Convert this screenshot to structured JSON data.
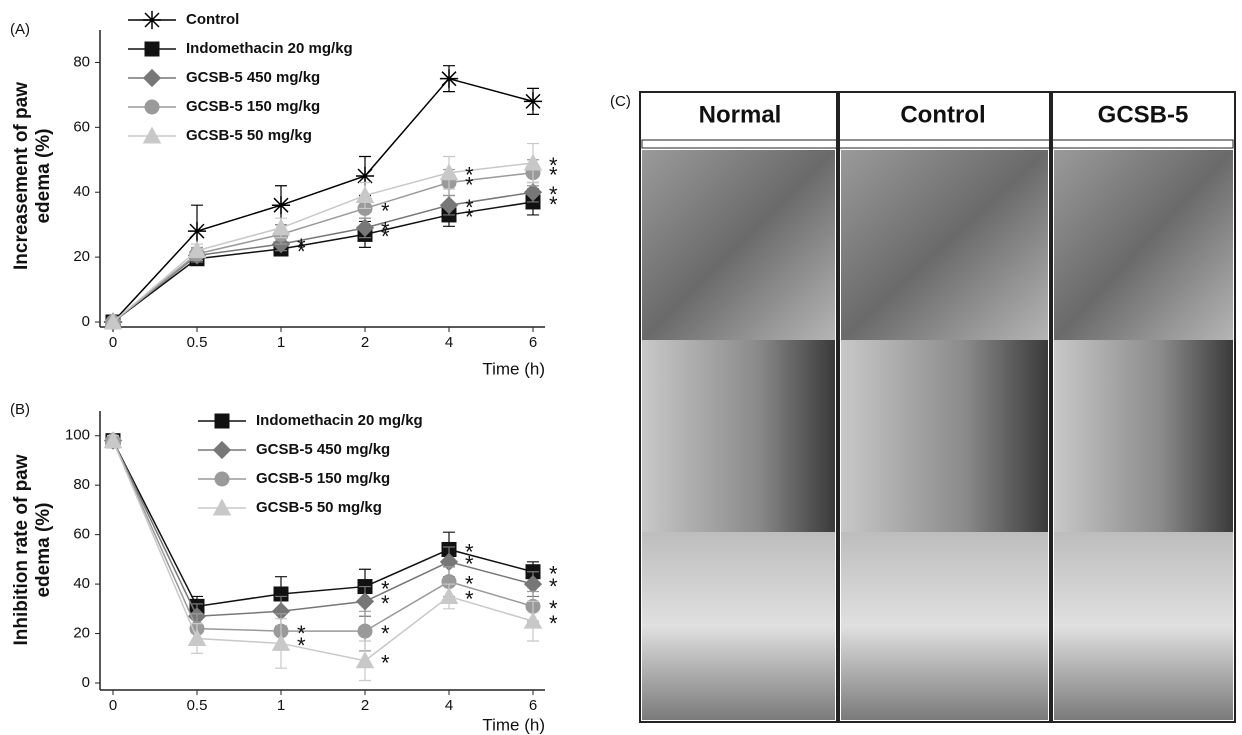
{
  "chart_data": [
    {
      "type": "line",
      "panel_label": "(A)",
      "ylabel": [
        "Increasement of paw",
        "edema (%)"
      ],
      "xlabel": "Time (h)",
      "categories": [
        "0",
        "0.5",
        "1",
        "2",
        "4",
        "6"
      ],
      "ylim": [
        0,
        90
      ],
      "yticks": [
        0,
        20,
        40,
        60,
        80
      ],
      "series": [
        {
          "name": "Control",
          "color": "#000000",
          "marker": "star",
          "values": [
            0,
            28,
            36,
            45,
            75,
            68
          ],
          "errors": [
            0,
            8,
            6,
            6,
            4,
            4
          ],
          "significance": [
            null,
            null,
            null,
            null,
            null,
            null
          ]
        },
        {
          "name": "Indomethacin  20 mg/kg",
          "color": "#111111",
          "marker": "square",
          "values": [
            0,
            19.5,
            22.5,
            27,
            33,
            37
          ],
          "errors": [
            0,
            1.5,
            2,
            4,
            3.5,
            4
          ],
          "significance": [
            null,
            null,
            "*",
            "*",
            "*",
            "*"
          ]
        },
        {
          "name": "GCSB-5  450 mg/kg",
          "color": "#777777",
          "marker": "diamond",
          "values": [
            0,
            20.5,
            24,
            29,
            36,
            40
          ],
          "errors": [
            0,
            2,
            2,
            3,
            3,
            3
          ],
          "significance": [
            null,
            null,
            "*",
            "*",
            "*",
            "*"
          ]
        },
        {
          "name": "GCSB-5  150 mg/kg",
          "color": "#9a9a9a",
          "marker": "circle",
          "values": [
            0,
            21,
            27,
            35,
            43,
            46
          ],
          "errors": [
            0,
            2,
            3,
            3,
            4,
            4
          ],
          "significance": [
            null,
            null,
            null,
            "*",
            "*",
            "*"
          ]
        },
        {
          "name": "GCSB-5  50 mg/kg",
          "color": "#c8c8c8",
          "marker": "triangle",
          "values": [
            0,
            22,
            29,
            39,
            46,
            49
          ],
          "errors": [
            0,
            2,
            3,
            4,
            5,
            6
          ],
          "significance": [
            null,
            null,
            null,
            null,
            "*",
            "*"
          ]
        }
      ]
    },
    {
      "type": "line",
      "panel_label": "(B)",
      "ylabel": [
        "Inhibition rate of paw",
        "edema (%)"
      ],
      "xlabel": "Time (h)",
      "categories": [
        "0",
        "0.5",
        "1",
        "2",
        "4",
        "6"
      ],
      "ylim": [
        0,
        110
      ],
      "yticks": [
        0,
        20,
        40,
        60,
        80,
        100
      ],
      "series": [
        {
          "name": "Indomethacin  20 mg/kg",
          "color": "#111111",
          "marker": "square",
          "values": [
            98,
            31,
            36,
            39,
            54,
            45
          ],
          "errors": [
            2,
            4,
            7,
            7,
            7,
            4
          ],
          "significance": [
            null,
            null,
            null,
            "*",
            "*",
            "*"
          ]
        },
        {
          "name": "GCSB-5  450 mg/kg",
          "color": "#777777",
          "marker": "diamond",
          "values": [
            98,
            27,
            29,
            33,
            49,
            40
          ],
          "errors": [
            2,
            5,
            6,
            6,
            6,
            5
          ],
          "significance": [
            null,
            null,
            null,
            "*",
            "*",
            "*"
          ]
        },
        {
          "name": "GCSB-5  150 mg/kg",
          "color": "#9a9a9a",
          "marker": "circle",
          "values": [
            98,
            22,
            21,
            21,
            41,
            31
          ],
          "errors": [
            2,
            6,
            7,
            8,
            6,
            6
          ],
          "significance": [
            null,
            null,
            "*",
            "*",
            "*",
            "*"
          ]
        },
        {
          "name": "GCSB-5  50 mg/kg",
          "color": "#c8c8c8",
          "marker": "triangle",
          "values": [
            98,
            18,
            16,
            9,
            35,
            25
          ],
          "errors": [
            2,
            6,
            10,
            8,
            5,
            8
          ],
          "significance": [
            null,
            null,
            "*",
            "*",
            "*",
            "*"
          ]
        }
      ]
    }
  ],
  "photo_panel": {
    "label": "(C)",
    "columns": [
      "Normal",
      "Control",
      "GCSB-5"
    ]
  }
}
